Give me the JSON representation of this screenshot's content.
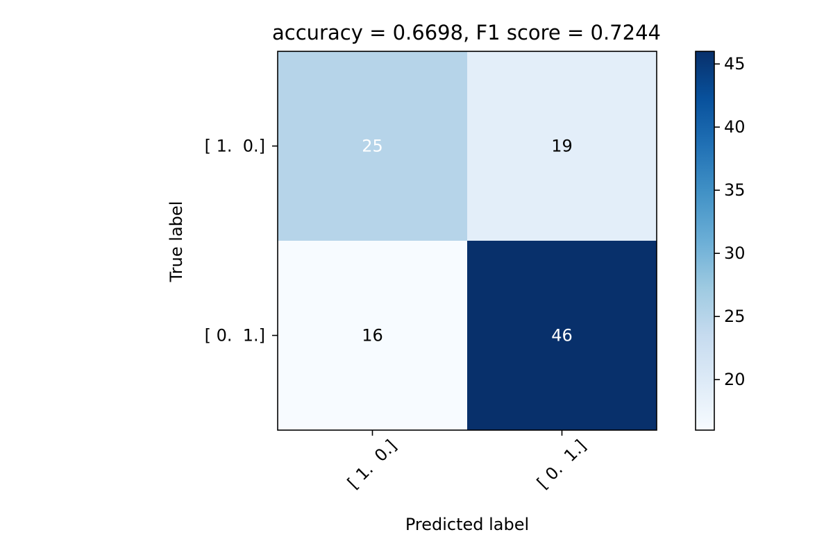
{
  "chart_data": {
    "type": "heatmap",
    "title": "accuracy = 0.6698, F1 score = 0.7244",
    "xlabel": "Predicted label",
    "ylabel": "True label",
    "x_tick_labels": [
      "[ 1.  0.]",
      "[ 0.  1.]"
    ],
    "y_tick_labels": [
      "[ 1.  0.]",
      "[ 0.  1.]"
    ],
    "matrix": [
      [
        25,
        19
      ],
      [
        16,
        46
      ]
    ],
    "colormap": "Blues",
    "colorbar": {
      "range": [
        16,
        46
      ],
      "ticks": [
        20,
        25,
        30,
        35,
        40,
        45
      ]
    },
    "grid": false
  }
}
